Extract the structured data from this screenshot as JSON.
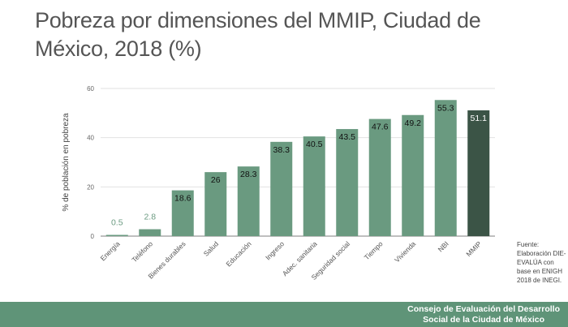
{
  "title": "Pobreza por dimensiones del MMIP, Ciudad de México, 2018 (%)",
  "source": "Fuente: Elaboración DIE-EVALÚA con base en ENIGH 2018 de INEGI.",
  "footer": {
    "line1": "Consejo de Evaluación del Desarrollo",
    "line2": "Social de la Ciudad de México"
  },
  "colors": {
    "bar": "#6a9a80",
    "highlight": "#3b5446",
    "footer": "#5f9478",
    "title": "#555555"
  },
  "chart_data": {
    "type": "bar",
    "title": "",
    "xlabel": "",
    "ylabel": "% de población en pobreza",
    "ylim": [
      0,
      60
    ],
    "yticks": [
      0,
      20,
      40,
      60
    ],
    "grid": true,
    "categories": [
      "Energía",
      "Teléfono",
      "Bienes durables",
      "Salud",
      "Educación",
      "Ingreso",
      "Adec. sanitaria",
      "Seguridad social",
      "Tiempo",
      "Vivienda",
      "NBI",
      "MMIP"
    ],
    "values": [
      0.5,
      2.8,
      18.6,
      26,
      28.3,
      38.3,
      40.5,
      43.5,
      47.6,
      49.2,
      55.3,
      51.1
    ],
    "labels": [
      "0.5",
      "2.8",
      "18.6",
      "26",
      "28.3",
      "38.3",
      "40.5",
      "43.5",
      "47.6",
      "49.2",
      "55.3",
      "51.1"
    ],
    "highlighted": "MMIP"
  }
}
